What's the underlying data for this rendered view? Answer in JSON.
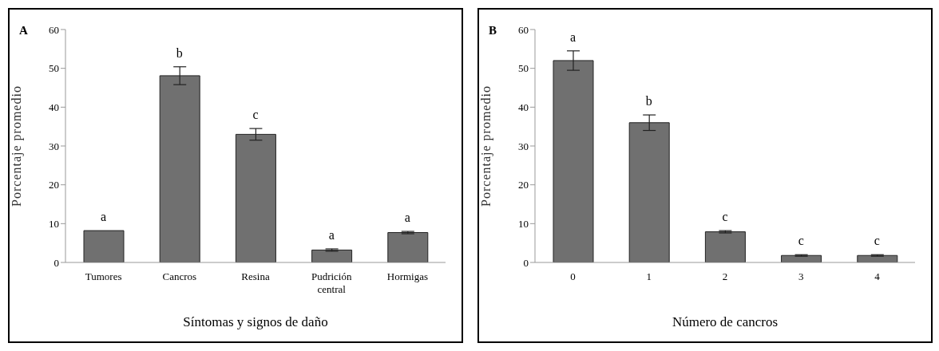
{
  "chart_data": [
    {
      "type": "bar",
      "title": "A",
      "xlabel": "Síntomas y signos de daño",
      "ylabel": "Porcentaje promedio",
      "categories": [
        "Tumores",
        "Cancros",
        "Resina",
        "Pudrición central",
        "Hormigas"
      ],
      "values": [
        8.2,
        48.1,
        33,
        3.2,
        7.7
      ],
      "errors": [
        null,
        2.3,
        1.5,
        0.3,
        0.3
      ],
      "color": "#707070",
      "ylim": [
        0,
        60
      ],
      "yticks": [
        0,
        10,
        20,
        30,
        40,
        50,
        60
      ],
      "grid": false,
      "legend": false,
      "annotations": [
        "a",
        "b",
        "c",
        "a",
        "a"
      ]
    },
    {
      "type": "bar",
      "title": "B",
      "xlabel": "Número de cancros",
      "ylabel": "Porcentaje promedio",
      "categories": [
        "0",
        "1",
        "2",
        "3",
        "4"
      ],
      "values": [
        52,
        36,
        7.9,
        1.8,
        1.8
      ],
      "errors": [
        2.5,
        2,
        0.3,
        0.2,
        0.2
      ],
      "color": "#707070",
      "ylim": [
        0,
        60
      ],
      "yticks": [
        0,
        10,
        20,
        30,
        40,
        50,
        60
      ],
      "grid": false,
      "legend": false,
      "annotations": [
        "a",
        "b",
        "c",
        "c",
        "c"
      ]
    }
  ]
}
